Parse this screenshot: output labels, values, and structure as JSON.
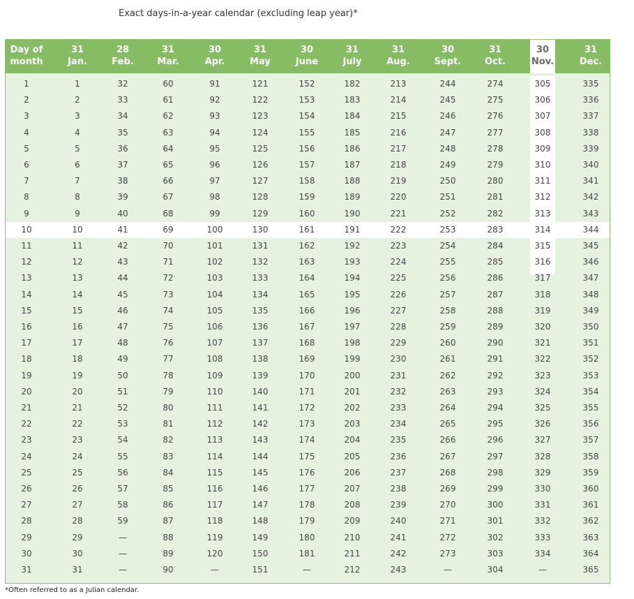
{
  "title": "Exact days-in-a-year calendar (excluding leap year)*",
  "footnote": "*Often referred to as a Julian calendar.",
  "columns": [
    {
      "top": "Day of",
      "bottom": "month"
    },
    {
      "top": "31",
      "bottom": "Jan."
    },
    {
      "top": "28",
      "bottom": "Feb."
    },
    {
      "top": "31",
      "bottom": "Mar."
    },
    {
      "top": "30",
      "bottom": "Apr."
    },
    {
      "top": "31",
      "bottom": "May"
    },
    {
      "top": "30",
      "bottom": "June"
    },
    {
      "top": "31",
      "bottom": "July"
    },
    {
      "top": "31",
      "bottom": "Aug."
    },
    {
      "top": "30",
      "bottom": "Sept."
    },
    {
      "top": "31",
      "bottom": "Oct."
    },
    {
      "top": "30",
      "bottom": "Nov."
    },
    {
      "top": "31",
      "bottom": "Dec."
    }
  ],
  "rows": [
    [
      "1",
      "1",
      "32",
      "60",
      "91",
      "121",
      "152",
      "182",
      "213",
      "244",
      "274",
      "305",
      "335"
    ],
    [
      "2",
      "2",
      "33",
      "61",
      "92",
      "122",
      "153",
      "183",
      "214",
      "245",
      "275",
      "306",
      "336"
    ],
    [
      "3",
      "3",
      "34",
      "62",
      "93",
      "123",
      "154",
      "184",
      "215",
      "246",
      "276",
      "307",
      "337"
    ],
    [
      "4",
      "4",
      "35",
      "63",
      "94",
      "124",
      "155",
      "185",
      "216",
      "247",
      "277",
      "308",
      "338"
    ],
    [
      "5",
      "5",
      "36",
      "64",
      "95",
      "125",
      "156",
      "186",
      "217",
      "248",
      "278",
      "309",
      "339"
    ],
    [
      "6",
      "6",
      "37",
      "65",
      "96",
      "126",
      "157",
      "187",
      "218",
      "249",
      "279",
      "310",
      "340"
    ],
    [
      "7",
      "7",
      "38",
      "66",
      "97",
      "127",
      "158",
      "188",
      "219",
      "250",
      "280",
      "311",
      "341"
    ],
    [
      "8",
      "8",
      "39",
      "67",
      "98",
      "128",
      "159",
      "189",
      "220",
      "251",
      "281",
      "312",
      "342"
    ],
    [
      "9",
      "9",
      "40",
      "68",
      "99",
      "129",
      "160",
      "190",
      "221",
      "252",
      "282",
      "313",
      "343"
    ],
    [
      "10",
      "10",
      "41",
      "69",
      "100",
      "130",
      "161",
      "191",
      "222",
      "253",
      "283",
      "314",
      "344"
    ],
    [
      "11",
      "11",
      "42",
      "70",
      "101",
      "131",
      "162",
      "192",
      "223",
      "254",
      "284",
      "315",
      "345"
    ],
    [
      "12",
      "12",
      "43",
      "71",
      "102",
      "132",
      "163",
      "193",
      "224",
      "255",
      "285",
      "316",
      "346"
    ],
    [
      "13",
      "13",
      "44",
      "72",
      "103",
      "133",
      "164",
      "194",
      "225",
      "256",
      "286",
      "317",
      "347"
    ],
    [
      "14",
      "14",
      "45",
      "73",
      "104",
      "134",
      "165",
      "195",
      "226",
      "257",
      "287",
      "318",
      "348"
    ],
    [
      "15",
      "15",
      "46",
      "74",
      "105",
      "135",
      "166",
      "196",
      "227",
      "258",
      "288",
      "319",
      "349"
    ],
    [
      "16",
      "16",
      "47",
      "75",
      "106",
      "136",
      "167",
      "197",
      "228",
      "259",
      "289",
      "320",
      "350"
    ],
    [
      "17",
      "17",
      "48",
      "76",
      "107",
      "137",
      "168",
      "198",
      "229",
      "260",
      "290",
      "321",
      "351"
    ],
    [
      "18",
      "18",
      "49",
      "77",
      "108",
      "138",
      "169",
      "199",
      "230",
      "261",
      "291",
      "322",
      "352"
    ],
    [
      "19",
      "19",
      "50",
      "78",
      "109",
      "139",
      "170",
      "200",
      "231",
      "262",
      "292",
      "323",
      "353"
    ],
    [
      "20",
      "20",
      "51",
      "79",
      "110",
      "140",
      "171",
      "201",
      "232",
      "263",
      "293",
      "324",
      "354"
    ],
    [
      "21",
      "21",
      "52",
      "80",
      "111",
      "141",
      "172",
      "202",
      "233",
      "264",
      "294",
      "325",
      "355"
    ],
    [
      "22",
      "22",
      "53",
      "81",
      "112",
      "142",
      "173",
      "203",
      "234",
      "265",
      "295",
      "326",
      "356"
    ],
    [
      "23",
      "23",
      "54",
      "82",
      "113",
      "143",
      "174",
      "204",
      "235",
      "266",
      "296",
      "327",
      "357"
    ],
    [
      "24",
      "24",
      "55",
      "83",
      "114",
      "144",
      "175",
      "205",
      "236",
      "267",
      "297",
      "328",
      "358"
    ],
    [
      "25",
      "25",
      "56",
      "84",
      "115",
      "145",
      "176",
      "206",
      "237",
      "268",
      "298",
      "329",
      "359"
    ],
    [
      "26",
      "26",
      "57",
      "85",
      "116",
      "146",
      "177",
      "207",
      "238",
      "269",
      "299",
      "330",
      "360"
    ],
    [
      "27",
      "27",
      "58",
      "86",
      "117",
      "147",
      "178",
      "208",
      "239",
      "270",
      "300",
      "331",
      "361"
    ],
    [
      "28",
      "28",
      "59",
      "87",
      "118",
      "148",
      "179",
      "209",
      "240",
      "271",
      "301",
      "332",
      "362"
    ],
    [
      "29",
      "29",
      "—",
      "88",
      "119",
      "149",
      "180",
      "210",
      "241",
      "272",
      "302",
      "333",
      "363"
    ],
    [
      "30",
      "30",
      "—",
      "89",
      "120",
      "150",
      "181",
      "211",
      "242",
      "273",
      "303",
      "334",
      "364"
    ],
    [
      "31",
      "31",
      "—",
      "90",
      "—",
      "151",
      "—",
      "212",
      "243",
      "—",
      "304",
      "—",
      "365"
    ]
  ],
  "highlight_row": "10",
  "highlight_column": "Nov.",
  "colors": {
    "header_bg": "#86bd64",
    "body_bg": "#e6f2e0",
    "highlight": "#ffffff",
    "border": "#8fbf6e"
  }
}
